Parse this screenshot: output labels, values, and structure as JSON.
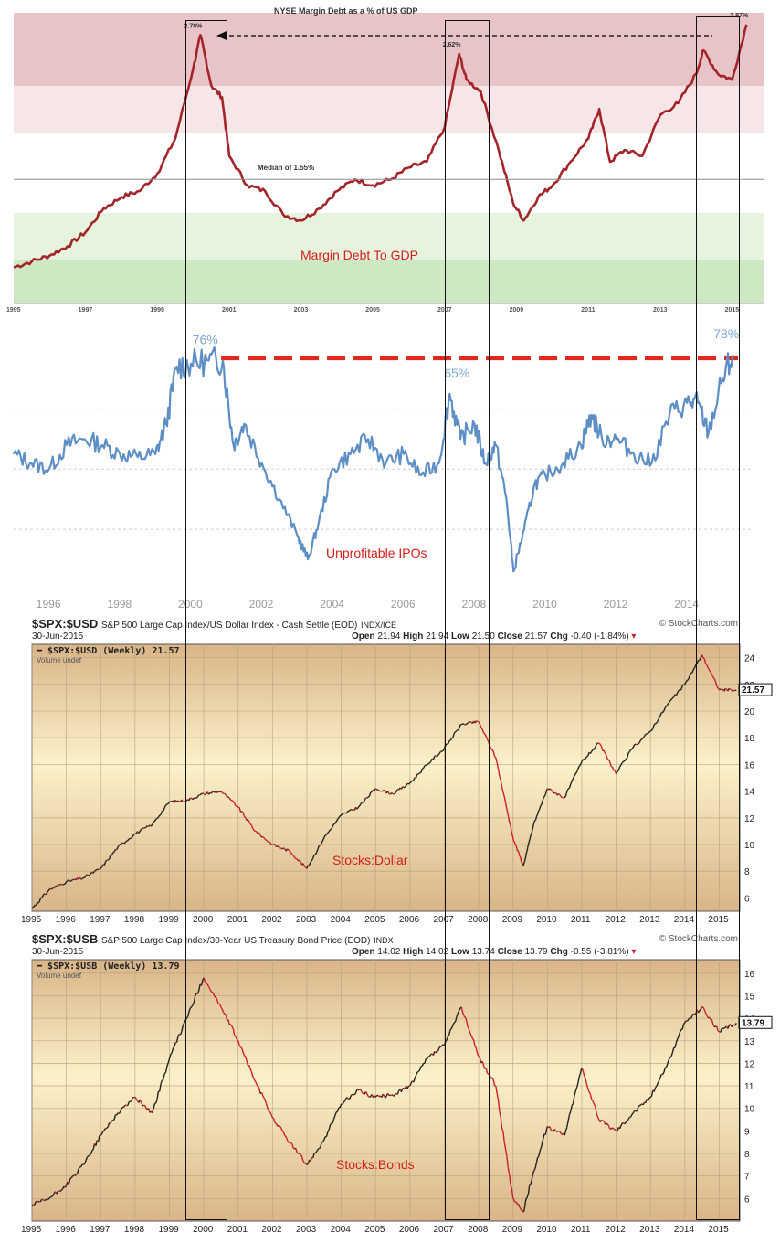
{
  "colors": {
    "margin_line": "#a3252a",
    "ipo_line": "#5d8fc6",
    "ipo_ref": "#e1281c",
    "price_up": "#222222",
    "price_down": "#cc1f2b",
    "gold_light": "#fbf1c8",
    "gold_dark": "#d9b588",
    "caption": "#d31f1a"
  },
  "panel1": {
    "title": "NYSE Margin Debt as a % of US GDP",
    "caption": "Margin Debt To GDP",
    "median_label": "Median of 1.55%",
    "peak_labels": [
      "2.78%",
      "2.62%",
      "2.87%"
    ],
    "x_ticks": [
      "1995",
      "1997",
      "1999",
      "2001",
      "2003",
      "2005",
      "2007",
      "2009",
      "2011",
      "2013",
      "2015"
    ]
  },
  "panel2": {
    "caption": "Unprofitable IPOs",
    "peak_labels": [
      "76%",
      "65%",
      "78%"
    ],
    "x_ticks": [
      "1996",
      "1998",
      "2000",
      "2002",
      "2004",
      "2006",
      "2008",
      "2010",
      "2012",
      "2014"
    ]
  },
  "panel3": {
    "symbol": "$SPX:$USD",
    "desc": "S&P 500 Large Cap Index/US Dollar Index - Cash Settle (EOD)",
    "exch": "INDX/ICE",
    "brand": "© StockCharts.com",
    "date": "30-Jun-2015",
    "open_label": "Open",
    "open": "21.94",
    "high_label": "High",
    "high": "21.94",
    "low_label": "Low",
    "low": "21.50",
    "close_label": "Close",
    "close": "21.57",
    "chg_label": "Chg",
    "chg": "-0.40 (-1.84%)",
    "legend": "$SPX:$USD (Weekly) 21.57",
    "volume": "Volume undef",
    "last_value": "21.57",
    "caption": "Stocks:Dollar",
    "y_ticks": [
      "24",
      "22",
      "20",
      "18",
      "16",
      "14",
      "12",
      "10",
      "8",
      "6"
    ],
    "x_ticks": [
      "1995",
      "1996",
      "1997",
      "1998",
      "1999",
      "2000",
      "2001",
      "2002",
      "2003",
      "2004",
      "2005",
      "2006",
      "2007",
      "2008",
      "2009",
      "2010",
      "2011",
      "2012",
      "2013",
      "2014",
      "2015"
    ]
  },
  "panel4": {
    "symbol": "$SPX:$USB",
    "desc": "S&P 500 Large Cap Index/30-Year US Treasury Bond Price (EOD)",
    "exch": "INDX",
    "brand": "© StockCharts.com",
    "date": "30-Jun-2015",
    "open_label": "Open",
    "open": "14.02",
    "high_label": "High",
    "high": "14.02",
    "low_label": "Low",
    "low": "13.74",
    "close_label": "Close",
    "close": "13.79",
    "chg_label": "Chg",
    "chg": "-0.55 (-3.81%)",
    "legend": "$SPX:$USB (Weekly) 13.79",
    "volume": "Volume undef",
    "last_value": "13.79",
    "caption": "Stocks:Bonds",
    "y_ticks": [
      "16",
      "15",
      "14",
      "13",
      "12",
      "11",
      "10",
      "9",
      "8",
      "7",
      "6"
    ],
    "x_ticks": [
      "1995",
      "1996",
      "1997",
      "1998",
      "1999",
      "2000",
      "2001",
      "2002",
      "2003",
      "2004",
      "2005",
      "2006",
      "2007",
      "2008",
      "2009",
      "2010",
      "2011",
      "2012",
      "2013",
      "2014",
      "2015"
    ]
  },
  "chart_data": [
    {
      "type": "line",
      "title": "NYSE Margin Debt as a % of US GDP",
      "series": [
        {
          "name": "Margin Debt To GDP",
          "x": [
            1995.0,
            1995.5,
            1996.0,
            1996.5,
            1997.0,
            1997.5,
            1998.0,
            1998.5,
            1999.0,
            1999.5,
            2000.0,
            2000.2,
            2000.5,
            2000.8,
            2001.0,
            2001.5,
            2002.0,
            2002.5,
            2003.0,
            2003.5,
            2004.0,
            2004.5,
            2005.0,
            2005.5,
            2006.0,
            2006.5,
            2007.0,
            2007.4,
            2007.6,
            2008.0,
            2008.5,
            2008.9,
            2009.2,
            2009.6,
            2010.0,
            2010.5,
            2011.0,
            2011.3,
            2011.6,
            2012.0,
            2012.5,
            2013.0,
            2013.5,
            2014.0,
            2014.2,
            2014.6,
            2015.0,
            2015.4
          ],
          "y": [
            0.8,
            0.85,
            0.9,
            0.98,
            1.1,
            1.3,
            1.4,
            1.45,
            1.6,
            1.9,
            2.5,
            2.78,
            2.35,
            2.25,
            1.75,
            1.5,
            1.45,
            1.25,
            1.2,
            1.3,
            1.45,
            1.55,
            1.5,
            1.55,
            1.65,
            1.7,
            2.0,
            2.62,
            2.4,
            2.3,
            1.8,
            1.35,
            1.2,
            1.4,
            1.5,
            1.7,
            1.9,
            2.15,
            1.7,
            1.8,
            1.75,
            2.1,
            2.2,
            2.45,
            2.65,
            2.45,
            2.4,
            2.87
          ]
        }
      ],
      "reference_line": {
        "label": "Median of 1.55%",
        "value": 1.55
      },
      "annotations": [
        "2.78%",
        "2.62%",
        "2.87%"
      ]
    },
    {
      "type": "line",
      "title": "",
      "series": [
        {
          "name": "Unprofitable IPOs",
          "x": [
            1995.0,
            1995.5,
            1996.0,
            1996.5,
            1997.0,
            1997.5,
            1998.0,
            1998.5,
            1999.0,
            1999.3,
            1999.6,
            2000.0,
            2000.5,
            2000.9,
            2001.2,
            2001.5,
            2002.0,
            2002.5,
            2003.0,
            2003.3,
            2003.6,
            2004.0,
            2004.5,
            2005.0,
            2005.5,
            2006.0,
            2006.5,
            2007.0,
            2007.3,
            2007.6,
            2008.0,
            2008.3,
            2008.6,
            2008.9,
            2009.1,
            2009.4,
            2009.7,
            2010.0,
            2010.5,
            2011.0,
            2011.3,
            2011.6,
            2012.0,
            2012.5,
            2013.0,
            2013.5,
            2014.0,
            2014.3,
            2014.6,
            2015.0,
            2015.3
          ],
          "y": [
            45,
            42,
            40,
            48,
            50,
            48,
            45,
            44,
            45,
            55,
            74,
            75,
            76,
            76,
            48,
            55,
            42,
            30,
            18,
            10,
            22,
            40,
            45,
            50,
            42,
            45,
            38,
            42,
            65,
            50,
            55,
            42,
            48,
            30,
            6,
            20,
            35,
            38,
            42,
            48,
            58,
            50,
            50,
            45,
            42,
            58,
            62,
            62,
            52,
            70,
            78
          ]
        }
      ],
      "reference_line": {
        "value": 76
      },
      "annotations": [
        "76%",
        "65%",
        "78%"
      ]
    },
    {
      "type": "line",
      "title": "$SPX:$USD (Weekly) 21.57",
      "series": [
        {
          "name": "$SPX:$USD",
          "x": [
            1995.0,
            1995.5,
            1996.0,
            1996.5,
            1997.0,
            1997.5,
            1998.0,
            1998.5,
            1999.0,
            1999.5,
            2000.0,
            2000.5,
            2001.0,
            2001.5,
            2002.0,
            2002.5,
            2003.0,
            2003.5,
            2004.0,
            2004.5,
            2005.0,
            2005.5,
            2006.0,
            2006.5,
            2007.0,
            2007.5,
            2008.0,
            2008.5,
            2009.0,
            2009.3,
            2009.6,
            2010.0,
            2010.5,
            2011.0,
            2011.5,
            2012.0,
            2012.5,
            2013.0,
            2013.5,
            2014.0,
            2014.5,
            2015.0,
            2015.5
          ],
          "y": [
            5.2,
            6.6,
            7.2,
            7.5,
            8.2,
            9.8,
            10.8,
            11.5,
            13.2,
            13.3,
            13.8,
            14.0,
            12.8,
            11.0,
            10.0,
            9.5,
            8.2,
            10.5,
            12.2,
            12.8,
            14.2,
            13.8,
            14.6,
            16.0,
            17.2,
            19.0,
            19.2,
            16.5,
            10.5,
            8.4,
            11.5,
            14.2,
            13.5,
            16.2,
            17.6,
            15.3,
            17.3,
            18.5,
            20.5,
            22.0,
            24.2,
            21.6,
            21.57
          ]
        }
      ],
      "ylim": [
        5,
        25
      ],
      "xlim": [
        1995,
        2015.6
      ]
    },
    {
      "type": "line",
      "title": "$SPX:$USB (Weekly) 13.79",
      "series": [
        {
          "name": "$SPX:$USB",
          "x": [
            1995.0,
            1995.5,
            1996.0,
            1996.5,
            1997.0,
            1997.5,
            1998.0,
            1998.5,
            1999.0,
            1999.5,
            2000.0,
            2000.5,
            2001.0,
            2001.5,
            2002.0,
            2002.5,
            2003.0,
            2003.5,
            2004.0,
            2004.5,
            2005.0,
            2005.5,
            2006.0,
            2006.5,
            2007.0,
            2007.5,
            2008.0,
            2008.5,
            2009.0,
            2009.3,
            2009.6,
            2010.0,
            2010.5,
            2011.0,
            2011.5,
            2012.0,
            2012.5,
            2013.0,
            2013.5,
            2014.0,
            2014.5,
            2015.0,
            2015.5
          ],
          "y": [
            5.7,
            6.0,
            6.6,
            7.5,
            8.8,
            9.8,
            10.5,
            9.8,
            12.2,
            14.0,
            15.8,
            14.5,
            13.0,
            11.2,
            9.6,
            8.5,
            7.5,
            8.6,
            10.2,
            10.8,
            10.5,
            10.6,
            11.0,
            12.2,
            12.8,
            14.5,
            12.3,
            11.0,
            6.0,
            5.4,
            7.2,
            9.2,
            8.8,
            11.8,
            9.5,
            9.0,
            9.8,
            10.5,
            12.0,
            13.8,
            14.5,
            13.4,
            13.79
          ]
        }
      ],
      "ylim": [
        5,
        16.6
      ],
      "xlim": [
        1995,
        2015.6
      ]
    }
  ]
}
